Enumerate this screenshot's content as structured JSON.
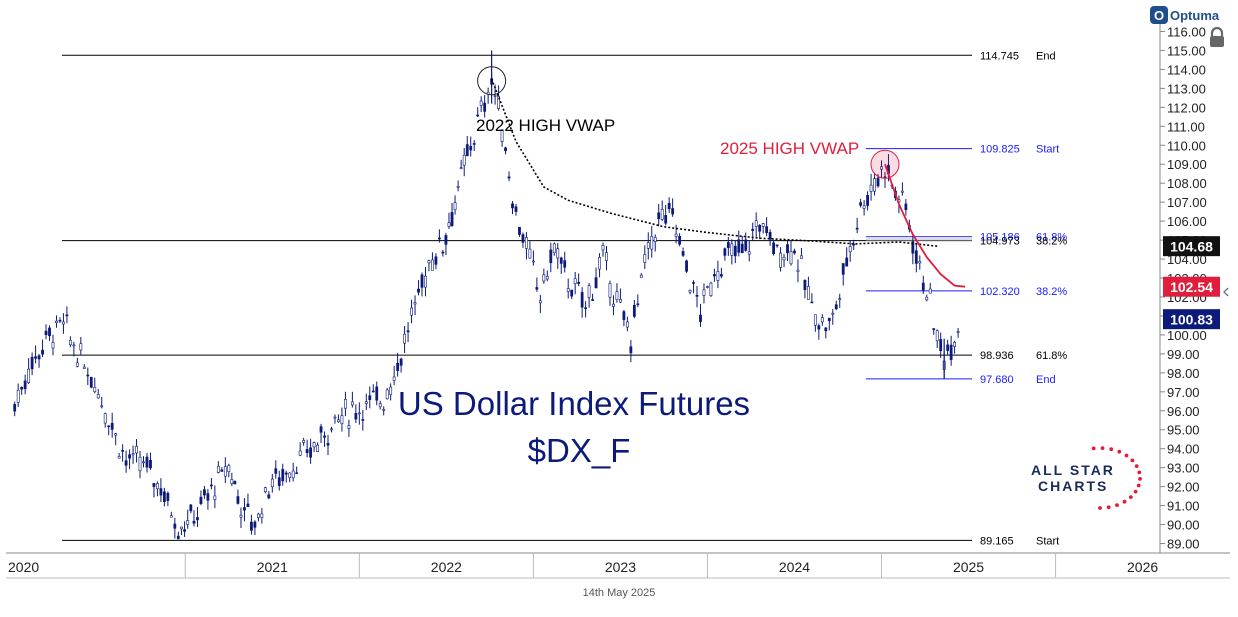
{
  "branding": {
    "optuma": "Optuma",
    "all_star_line1": "ALL STAR",
    "all_star_line2": "CHARTS",
    "footer_date": "14th May 2025"
  },
  "chart_data": {
    "type": "candlestick",
    "title": "US Dollar Index Futures",
    "subtitle": "$DX_F",
    "x_axis": {
      "labels": [
        "2020",
        "2021",
        "2022",
        "2023",
        "2024",
        "2025",
        "2026"
      ],
      "range": [
        "2020-01",
        "2026-08"
      ]
    },
    "y_axis": {
      "position": "right",
      "range": [
        88.5,
        116.5
      ],
      "ticks": [
        89.0,
        90.0,
        91.0,
        92.0,
        93.0,
        94.0,
        95.0,
        96.0,
        97.0,
        98.0,
        99.0,
        100.0,
        101.0,
        102.0,
        103.0,
        104.0,
        105.0,
        106.0,
        107.0,
        108.0,
        109.0,
        110.0,
        111.0,
        112.0,
        113.0,
        114.0,
        115.0,
        116.0
      ]
    },
    "series": [
      {
        "values": [
          [
            2020.02,
            96.3
          ],
          [
            2020.1,
            98.2
          ],
          [
            2020.2,
            99.8
          ],
          [
            2020.3,
            100.6
          ],
          [
            2020.38,
            99.0
          ],
          [
            2020.48,
            97.5
          ],
          [
            2020.58,
            95.2
          ],
          [
            2020.66,
            93.4
          ],
          [
            2020.76,
            93.2
          ],
          [
            2020.86,
            92.0
          ],
          [
            2020.96,
            89.9
          ],
          [
            2021.05,
            90.4
          ],
          [
            2021.15,
            91.8
          ],
          [
            2021.25,
            93.1
          ],
          [
            2021.32,
            91.0
          ],
          [
            2021.4,
            90.0
          ],
          [
            2021.48,
            92.1
          ],
          [
            2021.58,
            92.8
          ],
          [
            2021.66,
            93.4
          ],
          [
            2021.76,
            94.3
          ],
          [
            2021.86,
            95.5
          ],
          [
            2021.96,
            96.0
          ],
          [
            2022.06,
            96.4
          ],
          [
            2022.14,
            96.7
          ],
          [
            2022.22,
            98.4
          ],
          [
            2022.32,
            101.5
          ],
          [
            2022.4,
            103.8
          ],
          [
            2022.48,
            104.9
          ],
          [
            2022.55,
            107.0
          ],
          [
            2022.62,
            109.5
          ],
          [
            2022.7,
            111.7
          ],
          [
            2022.76,
            113.5
          ],
          [
            2022.82,
            111.0
          ],
          [
            2022.88,
            107.2
          ],
          [
            2022.96,
            104.5
          ],
          [
            2023.04,
            102.1
          ],
          [
            2023.12,
            104.6
          ],
          [
            2023.2,
            102.8
          ],
          [
            2023.3,
            101.6
          ],
          [
            2023.4,
            104.0
          ],
          [
            2023.5,
            101.2
          ],
          [
            2023.56,
            99.9
          ],
          [
            2023.64,
            103.8
          ],
          [
            2023.72,
            106.1
          ],
          [
            2023.8,
            106.3
          ],
          [
            2023.88,
            103.5
          ],
          [
            2023.96,
            101.2
          ],
          [
            2024.04,
            103.3
          ],
          [
            2024.12,
            104.2
          ],
          [
            2024.22,
            104.5
          ],
          [
            2024.3,
            106.0
          ],
          [
            2024.4,
            104.4
          ],
          [
            2024.5,
            104.6
          ],
          [
            2024.58,
            102.0
          ],
          [
            2024.66,
            100.5
          ],
          [
            2024.72,
            100.8
          ],
          [
            2024.8,
            103.9
          ],
          [
            2024.88,
            106.8
          ],
          [
            2024.96,
            108.0
          ],
          [
            2025.02,
            109.0
          ],
          [
            2025.08,
            107.5
          ],
          [
            2025.14,
            106.8
          ],
          [
            2025.2,
            104.1
          ],
          [
            2025.26,
            102.5
          ],
          [
            2025.32,
            99.7
          ],
          [
            2025.36,
            98.9
          ],
          [
            2025.4,
            99.6
          ],
          [
            2025.46,
            100.83
          ]
        ]
      }
    ],
    "vwap_2022": {
      "label": "2022 HIGH VWAP",
      "values": [
        [
          2022.76,
          113.5
        ],
        [
          2022.9,
          110.2
        ],
        [
          2023.06,
          107.8
        ],
        [
          2023.2,
          107.1
        ],
        [
          2023.45,
          106.4
        ],
        [
          2023.75,
          105.7
        ],
        [
          2024.0,
          105.4
        ],
        [
          2024.3,
          105.1
        ],
        [
          2024.6,
          104.95
        ],
        [
          2024.85,
          104.8
        ],
        [
          2025.1,
          104.9
        ],
        [
          2025.32,
          104.68
        ]
      ]
    },
    "vwap_2025": {
      "label": "2025 HIGH VWAP",
      "values": [
        [
          2025.02,
          109.0
        ],
        [
          2025.1,
          106.9
        ],
        [
          2025.18,
          105.3
        ],
        [
          2025.26,
          104.1
        ],
        [
          2025.34,
          103.2
        ],
        [
          2025.42,
          102.6
        ],
        [
          2025.48,
          102.54
        ]
      ]
    },
    "levels": [
      {
        "value": 114.745,
        "text": "114.745",
        "tag": "End",
        "color": "#000000"
      },
      {
        "value": 109.825,
        "text": "109.825",
        "tag": "Start",
        "color": "#1a1aff"
      },
      {
        "value": 105.186,
        "text": "105.186",
        "tag": "61.8%",
        "color": "#1a1aff"
      },
      {
        "value": 104.973,
        "text": "104.973",
        "tag": "38.2%",
        "color": "#000000"
      },
      {
        "value": 102.32,
        "text": "102.320",
        "tag": "38.2%",
        "color": "#1a1aff"
      },
      {
        "value": 98.936,
        "text": "98.936",
        "tag": "61.8%",
        "color": "#000000"
      },
      {
        "value": 97.68,
        "text": "97.680",
        "tag": "End",
        "color": "#1a1aff"
      },
      {
        "value": 89.165,
        "text": "89.165",
        "tag": "Start",
        "color": "#000000"
      }
    ],
    "price_tags": [
      {
        "value": 104.68,
        "text": "104.68",
        "bg": "#111111"
      },
      {
        "value": 102.54,
        "text": "102.54",
        "bg": "#e01e3c"
      },
      {
        "value": 100.83,
        "text": "100.83",
        "bg": "#0c1a7a"
      }
    ],
    "colors": {
      "candle": "#0c1a7a",
      "vwap_2025": "#e01e3c",
      "vwap_2022": "#000000"
    }
  }
}
